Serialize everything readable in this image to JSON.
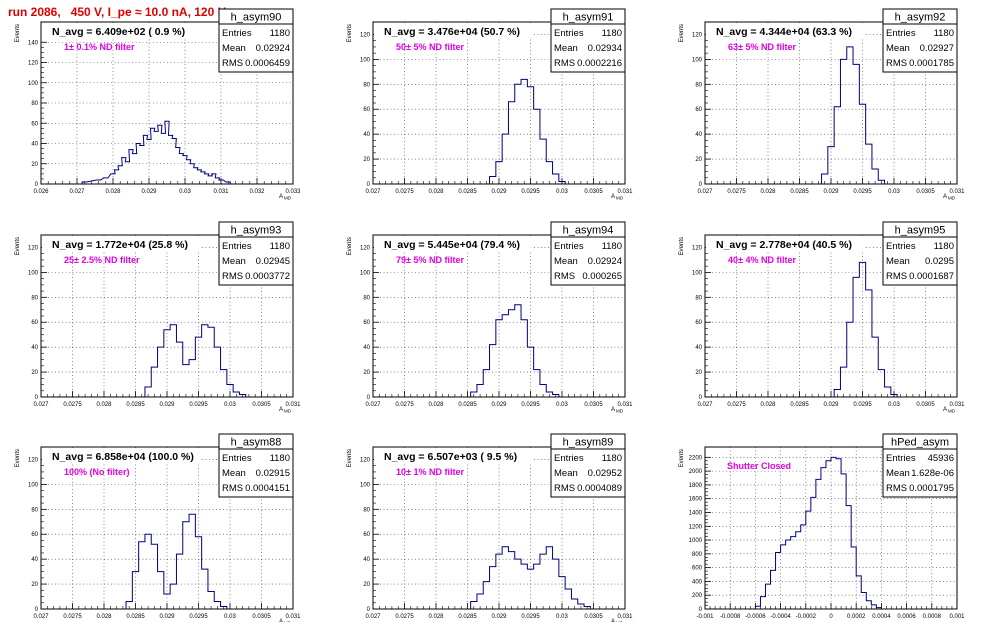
{
  "run_title": "run 2086,   450 V, I_pe ≈ 10.0 nA, 120 Hz",
  "colors": {
    "line": "#00007f",
    "note": "#e000e0",
    "title": "#e00000",
    "grid": "#000000"
  },
  "chart_data": [
    {
      "type": "histogram",
      "name": "h_asym90",
      "headline": "N_avg = 6.409e+02 ( 0.9 %)",
      "note": "1± 0.1% ND filter",
      "stats": [
        [
          "Entries",
          "1180"
        ],
        [
          "Mean",
          "0.02924"
        ],
        [
          "RMS",
          "0.0006459"
        ]
      ],
      "xlim": [
        0.026,
        0.033
      ],
      "xticks": [
        "0.026",
        "0.027",
        "0.028",
        "0.029",
        "0.03",
        "0.031",
        "0.032",
        "0.033"
      ],
      "xlabel": "A_MD",
      "ylim": [
        0,
        160
      ],
      "yticks": [
        0,
        20,
        40,
        60,
        80,
        100,
        120,
        140
      ],
      "ylabel": "Events",
      "x": [
        0.0272,
        0.0276,
        0.0278,
        0.028,
        0.0281,
        0.0282,
        0.0283,
        0.0284,
        0.0285,
        0.0286,
        0.0287,
        0.0288,
        0.0289,
        0.029,
        0.0291,
        0.0292,
        0.0293,
        0.0294,
        0.0295,
        0.0296,
        0.0297,
        0.0298,
        0.0299,
        0.03,
        0.0301,
        0.0302,
        0.0303,
        0.0304,
        0.0305,
        0.0306,
        0.0307,
        0.0308,
        0.0309,
        0.031,
        0.0312
      ],
      "y": [
        2,
        4,
        6,
        10,
        14,
        18,
        26,
        22,
        34,
        30,
        40,
        38,
        48,
        44,
        55,
        52,
        58,
        50,
        62,
        48,
        45,
        36,
        30,
        28,
        24,
        20,
        16,
        14,
        12,
        10,
        8,
        10,
        6,
        4,
        2
      ]
    },
    {
      "type": "histogram",
      "name": "h_asym91",
      "headline": "N_avg = 3.476e+04 (50.7 %)",
      "note": "50± 5% ND filter",
      "stats": [
        [
          "Entries",
          "1180"
        ],
        [
          "Mean",
          "0.02934"
        ],
        [
          "RMS",
          "0.0002216"
        ]
      ],
      "xlim": [
        0.027,
        0.031
      ],
      "xticks": [
        "0.027",
        "0.0275",
        "0.028",
        "0.0285",
        "0.029",
        "0.0295",
        "0.03",
        "0.0305",
        "0.031"
      ],
      "xlabel": "A_MD",
      "ylim": [
        0,
        130
      ],
      "yticks": [
        0,
        20,
        40,
        60,
        80,
        100,
        120
      ],
      "ylabel": "Events",
      "x": [
        0.0289,
        0.029,
        0.0291,
        0.0292,
        0.0293,
        0.0294,
        0.0295,
        0.0296,
        0.0297,
        0.0298,
        0.0299,
        0.03
      ],
      "y": [
        6,
        18,
        40,
        66,
        80,
        84,
        78,
        60,
        36,
        18,
        8,
        2
      ]
    },
    {
      "type": "histogram",
      "name": "h_asym92",
      "headline": "N_avg = 4.344e+04 (63.3 %)",
      "note": "63± 5% ND filter",
      "stats": [
        [
          "Entries",
          "1180"
        ],
        [
          "Mean",
          "0.02927"
        ],
        [
          "RMS",
          "0.0001785"
        ]
      ],
      "xlim": [
        0.027,
        0.031
      ],
      "xticks": [
        "0.027",
        "0.0275",
        "0.028",
        "0.0285",
        "0.029",
        "0.0295",
        "0.03",
        "0.0305",
        "0.031"
      ],
      "xlabel": "A_MD",
      "ylim": [
        0,
        130
      ],
      "yticks": [
        0,
        20,
        40,
        60,
        80,
        100,
        120
      ],
      "ylabel": "Events",
      "x": [
        0.0289,
        0.029,
        0.0291,
        0.0292,
        0.0293,
        0.0294,
        0.0295,
        0.0296,
        0.0297,
        0.0298
      ],
      "y": [
        8,
        30,
        62,
        100,
        110,
        96,
        64,
        32,
        12,
        3
      ]
    },
    {
      "type": "histogram",
      "name": "h_asym93",
      "headline": "N_avg = 1.772e+04 (25.8 %)",
      "note": "25± 2.5% ND filter",
      "stats": [
        [
          "Entries",
          "1180"
        ],
        [
          "Mean",
          "0.02945"
        ],
        [
          "RMS",
          "0.0003772"
        ]
      ],
      "xlim": [
        0.027,
        0.031
      ],
      "xticks": [
        "0.027",
        "0.0275",
        "0.028",
        "0.0285",
        "0.029",
        "0.0295",
        "0.03",
        "0.0305",
        "0.031"
      ],
      "xlabel": "A_MD",
      "ylim": [
        0,
        130
      ],
      "yticks": [
        0,
        20,
        40,
        60,
        80,
        100,
        120
      ],
      "ylabel": "Events",
      "x": [
        0.0287,
        0.0288,
        0.0289,
        0.029,
        0.0291,
        0.0292,
        0.0293,
        0.0294,
        0.0295,
        0.0296,
        0.0297,
        0.0298,
        0.0299,
        0.03,
        0.0301,
        0.0302
      ],
      "y": [
        8,
        24,
        40,
        54,
        58,
        44,
        26,
        30,
        48,
        58,
        56,
        40,
        22,
        10,
        4,
        2
      ]
    },
    {
      "type": "histogram",
      "name": "h_asym94",
      "headline": "N_avg = 5.445e+04 (79.4 %)",
      "note": "79± 5% ND filter",
      "stats": [
        [
          "Entries",
          "1180"
        ],
        [
          "Mean",
          "0.02924"
        ],
        [
          "RMS",
          "0.000265"
        ]
      ],
      "xlim": [
        0.027,
        0.031
      ],
      "xticks": [
        "0.027",
        "0.0275",
        "0.028",
        "0.0285",
        "0.029",
        "0.0295",
        "0.03",
        "0.0305",
        "0.031"
      ],
      "xlabel": "A_MD",
      "ylim": [
        0,
        130
      ],
      "yticks": [
        0,
        20,
        40,
        60,
        80,
        100,
        120
      ],
      "ylabel": "Events",
      "x": [
        0.0286,
        0.0287,
        0.0288,
        0.0289,
        0.029,
        0.0291,
        0.0292,
        0.0293,
        0.0294,
        0.0295,
        0.0296,
        0.0297,
        0.0298,
        0.0299
      ],
      "y": [
        4,
        10,
        22,
        42,
        62,
        66,
        70,
        74,
        62,
        40,
        22,
        10,
        4,
        2
      ]
    },
    {
      "type": "histogram",
      "name": "h_asym95",
      "headline": "N_avg = 2.778e+04 (40.5 %)",
      "note": "40± 4% ND filter",
      "stats": [
        [
          "Entries",
          "1180"
        ],
        [
          "Mean",
          "0.0295"
        ],
        [
          "RMS",
          "0.0001687"
        ]
      ],
      "xlim": [
        0.027,
        0.031
      ],
      "xticks": [
        "0.027",
        "0.0275",
        "0.028",
        "0.0285",
        "0.029",
        "0.0295",
        "0.03",
        "0.0305",
        "0.031"
      ],
      "xlabel": "A_MD",
      "ylim": [
        0,
        130
      ],
      "yticks": [
        0,
        20,
        40,
        60,
        80,
        100,
        120
      ],
      "ylabel": "Events",
      "x": [
        0.0291,
        0.0292,
        0.0293,
        0.0294,
        0.0295,
        0.0296,
        0.0297,
        0.0298,
        0.0299,
        0.03
      ],
      "y": [
        6,
        24,
        60,
        96,
        108,
        86,
        48,
        22,
        8,
        2
      ]
    },
    {
      "type": "histogram",
      "name": "h_asym88",
      "headline": "N_avg = 6.858e+04 (100.0 %)",
      "note": "100% (No filter)",
      "stats": [
        [
          "Entries",
          "1180"
        ],
        [
          "Mean",
          "0.02915"
        ],
        [
          "RMS",
          "0.0004151"
        ]
      ],
      "xlim": [
        0.027,
        0.031
      ],
      "xticks": [
        "0.027",
        "0.0275",
        "0.028",
        "0.0285",
        "0.029",
        "0.0295",
        "0.03",
        "0.0305",
        "0.031"
      ],
      "xlabel": "A_MD",
      "ylim": [
        0,
        130
      ],
      "yticks": [
        0,
        20,
        40,
        60,
        80,
        100,
        120
      ],
      "ylabel": "Events",
      "x": [
        0.0284,
        0.0285,
        0.0286,
        0.0287,
        0.0288,
        0.0289,
        0.029,
        0.0291,
        0.0292,
        0.0293,
        0.0294,
        0.0295,
        0.0296,
        0.0297,
        0.0298,
        0.0299
      ],
      "y": [
        6,
        30,
        54,
        60,
        52,
        30,
        12,
        20,
        44,
        70,
        76,
        58,
        32,
        14,
        6,
        2
      ]
    },
    {
      "type": "histogram",
      "name": "h_asym89",
      "headline": "N_avg = 6.507e+03 ( 9.5 %)",
      "note": "10± 1% ND filter",
      "stats": [
        [
          "Entries",
          "1180"
        ],
        [
          "Mean",
          "0.02952"
        ],
        [
          "RMS",
          "0.0004089"
        ]
      ],
      "xlim": [
        0.027,
        0.031
      ],
      "xticks": [
        "0.027",
        "0.0275",
        "0.028",
        "0.0285",
        "0.029",
        "0.0295",
        "0.03",
        "0.0305",
        "0.031"
      ],
      "xlabel": "A_MD",
      "ylim": [
        0,
        130
      ],
      "yticks": [
        0,
        20,
        40,
        60,
        80,
        100,
        120
      ],
      "ylabel": "Events",
      "x": [
        0.0286,
        0.0287,
        0.0288,
        0.0289,
        0.029,
        0.0291,
        0.0292,
        0.0293,
        0.0294,
        0.0295,
        0.0296,
        0.0297,
        0.0298,
        0.0299,
        0.03,
        0.0301,
        0.0302,
        0.0303,
        0.0304
      ],
      "y": [
        6,
        12,
        22,
        34,
        44,
        50,
        46,
        40,
        36,
        32,
        36,
        44,
        50,
        40,
        26,
        16,
        8,
        4,
        2
      ]
    },
    {
      "type": "histogram",
      "name": "hPed_asym",
      "headline": "",
      "note": "Shutter Closed",
      "stats": [
        [
          "Entries",
          "45936"
        ],
        [
          "Mean",
          "1.628e-06"
        ],
        [
          "RMS",
          "0.0001795"
        ]
      ],
      "xlim": [
        -0.001,
        0.001
      ],
      "xticks": [
        "-0.001",
        "-0.0008",
        "-0.0006",
        "-0.0004",
        "-0.0002",
        "0",
        "0.0002",
        "0.0004",
        "0.0006",
        "0.0008",
        "0.001"
      ],
      "xlabel": "",
      "ylim": [
        0,
        2350
      ],
      "yticks": [
        0,
        200,
        400,
        600,
        800,
        1000,
        1200,
        1400,
        1600,
        1800,
        2000,
        2200
      ],
      "ylabel": "Events",
      "x": [
        -0.00058,
        -0.00054,
        -0.0005,
        -0.00046,
        -0.00042,
        -0.00038,
        -0.00034,
        -0.0003,
        -0.00026,
        -0.00022,
        -0.00018,
        -0.00014,
        -0.0001,
        -6e-05,
        -2e-05,
        2e-05,
        6e-05,
        0.0001,
        0.00014,
        0.00018,
        0.00022,
        0.00026,
        0.0003,
        0.00034,
        0.00038
      ],
      "y": [
        40,
        180,
        360,
        560,
        820,
        930,
        1000,
        1050,
        1120,
        1220,
        1420,
        1620,
        1880,
        2050,
        2150,
        2200,
        2180,
        1960,
        1500,
        900,
        480,
        240,
        120,
        60,
        20
      ]
    }
  ]
}
